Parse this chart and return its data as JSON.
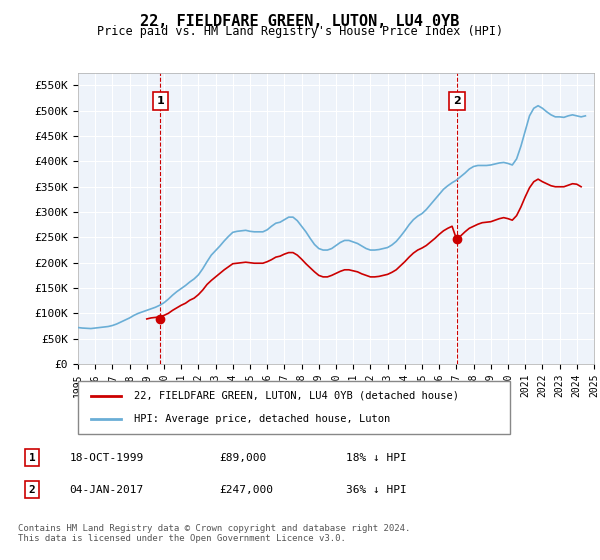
{
  "title": "22, FIELDFARE GREEN, LUTON, LU4 0YB",
  "subtitle": "Price paid vs. HM Land Registry's House Price Index (HPI)",
  "ylabel": "",
  "ylim": [
    0,
    575000
  ],
  "yticks": [
    0,
    50000,
    100000,
    150000,
    200000,
    250000,
    300000,
    350000,
    400000,
    450000,
    500000,
    550000
  ],
  "ytick_labels": [
    "£0",
    "£50K",
    "£100K",
    "£150K",
    "£200K",
    "£250K",
    "£300K",
    "£350K",
    "£400K",
    "£450K",
    "£500K",
    "£550K"
  ],
  "background_color": "#EEF3FA",
  "plot_bg_color": "#EEF3FA",
  "grid_color": "#ffffff",
  "hpi_color": "#6aaed6",
  "price_color": "#cc0000",
  "marker_color": "#cc0000",
  "sale1_date": "18-OCT-1999",
  "sale1_price": 89000,
  "sale1_pct": "18%",
  "sale2_date": "04-JAN-2017",
  "sale2_price": 247000,
  "sale2_pct": "36%",
  "legend_label1": "22, FIELDFARE GREEN, LUTON, LU4 0YB (detached house)",
  "legend_label2": "HPI: Average price, detached house, Luton",
  "footnote": "Contains HM Land Registry data © Crown copyright and database right 2024.\nThis data is licensed under the Open Government Licence v3.0.",
  "hpi_data_x": [
    1995.0,
    1995.25,
    1995.5,
    1995.75,
    1996.0,
    1996.25,
    1996.5,
    1996.75,
    1997.0,
    1997.25,
    1997.5,
    1997.75,
    1998.0,
    1998.25,
    1998.5,
    1998.75,
    1999.0,
    1999.25,
    1999.5,
    1999.75,
    2000.0,
    2000.25,
    2000.5,
    2000.75,
    2001.0,
    2001.25,
    2001.5,
    2001.75,
    2002.0,
    2002.25,
    2002.5,
    2002.75,
    2003.0,
    2003.25,
    2003.5,
    2003.75,
    2004.0,
    2004.25,
    2004.5,
    2004.75,
    2005.0,
    2005.25,
    2005.5,
    2005.75,
    2006.0,
    2006.25,
    2006.5,
    2006.75,
    2007.0,
    2007.25,
    2007.5,
    2007.75,
    2008.0,
    2008.25,
    2008.5,
    2008.75,
    2009.0,
    2009.25,
    2009.5,
    2009.75,
    2010.0,
    2010.25,
    2010.5,
    2010.75,
    2011.0,
    2011.25,
    2011.5,
    2011.75,
    2012.0,
    2012.25,
    2012.5,
    2012.75,
    2013.0,
    2013.25,
    2013.5,
    2013.75,
    2014.0,
    2014.25,
    2014.5,
    2014.75,
    2015.0,
    2015.25,
    2015.5,
    2015.75,
    2016.0,
    2016.25,
    2016.5,
    2016.75,
    2017.0,
    2017.25,
    2017.5,
    2017.75,
    2018.0,
    2018.25,
    2018.5,
    2018.75,
    2019.0,
    2019.25,
    2019.5,
    2019.75,
    2020.0,
    2020.25,
    2020.5,
    2020.75,
    2021.0,
    2021.25,
    2021.5,
    2021.75,
    2022.0,
    2022.25,
    2022.5,
    2022.75,
    2023.0,
    2023.25,
    2023.5,
    2023.75,
    2024.0,
    2024.25,
    2024.5
  ],
  "hpi_data_y": [
    72000,
    71000,
    70500,
    70000,
    71000,
    72000,
    73000,
    74000,
    76000,
    79000,
    83000,
    87000,
    91000,
    96000,
    100000,
    103000,
    106000,
    109000,
    112000,
    116000,
    121000,
    128000,
    136000,
    143000,
    149000,
    155000,
    162000,
    168000,
    176000,
    188000,
    202000,
    215000,
    224000,
    233000,
    243000,
    252000,
    260000,
    262000,
    263000,
    264000,
    262000,
    261000,
    261000,
    261000,
    265000,
    272000,
    278000,
    280000,
    285000,
    290000,
    290000,
    283000,
    272000,
    261000,
    248000,
    236000,
    228000,
    225000,
    225000,
    228000,
    234000,
    240000,
    244000,
    244000,
    241000,
    238000,
    233000,
    228000,
    225000,
    225000,
    226000,
    228000,
    230000,
    235000,
    242000,
    252000,
    263000,
    275000,
    285000,
    292000,
    297000,
    305000,
    315000,
    325000,
    335000,
    345000,
    352000,
    358000,
    363000,
    370000,
    377000,
    385000,
    390000,
    392000,
    392000,
    392000,
    393000,
    395000,
    397000,
    398000,
    396000,
    393000,
    405000,
    430000,
    460000,
    490000,
    505000,
    510000,
    505000,
    498000,
    492000,
    488000,
    488000,
    487000,
    490000,
    492000,
    490000,
    488000,
    490000
  ],
  "price_data_x": [
    1999.0,
    1999.25,
    1999.5,
    1999.75,
    2000.0,
    2000.25,
    2000.5,
    2000.75,
    2001.0,
    2001.25,
    2001.5,
    2001.75,
    2002.0,
    2002.25,
    2002.5,
    2002.75,
    2003.0,
    2003.25,
    2003.5,
    2003.75,
    2004.0,
    2004.25,
    2004.5,
    2004.75,
    2005.0,
    2005.25,
    2005.5,
    2005.75,
    2006.0,
    2006.25,
    2006.5,
    2006.75,
    2007.0,
    2007.25,
    2007.5,
    2007.75,
    2008.0,
    2008.25,
    2008.5,
    2008.75,
    2009.0,
    2009.25,
    2009.5,
    2009.75,
    2010.0,
    2010.25,
    2010.5,
    2010.75,
    2011.0,
    2011.25,
    2011.5,
    2011.75,
    2012.0,
    2012.25,
    2012.5,
    2012.75,
    2013.0,
    2013.25,
    2013.5,
    2013.75,
    2014.0,
    2014.25,
    2014.5,
    2014.75,
    2015.0,
    2015.25,
    2015.5,
    2015.75,
    2016.0,
    2016.25,
    2016.5,
    2016.75,
    2017.0,
    2017.25,
    2017.5,
    2017.75,
    2018.0,
    2018.25,
    2018.5,
    2018.75,
    2019.0,
    2019.25,
    2019.5,
    2019.75,
    2020.0,
    2020.25,
    2020.5,
    2020.75,
    2021.0,
    2021.25,
    2021.5,
    2021.75,
    2022.0,
    2022.25,
    2022.5,
    2022.75,
    2023.0,
    2023.25,
    2023.5,
    2023.75,
    2024.0,
    2024.25
  ],
  "price_data_y": [
    89000,
    91000,
    92000,
    93000,
    96000,
    100000,
    106000,
    111000,
    116000,
    120000,
    126000,
    130000,
    137000,
    146000,
    157000,
    165000,
    172000,
    179000,
    186000,
    192000,
    198000,
    199000,
    200000,
    201000,
    200000,
    199000,
    199000,
    199000,
    202000,
    206000,
    211000,
    213000,
    217000,
    220000,
    220000,
    215000,
    207000,
    198000,
    190000,
    182000,
    175000,
    172000,
    172000,
    175000,
    179000,
    183000,
    186000,
    186000,
    184000,
    182000,
    178000,
    175000,
    172000,
    172000,
    173000,
    175000,
    177000,
    181000,
    186000,
    194000,
    202000,
    211000,
    219000,
    225000,
    229000,
    234000,
    241000,
    248000,
    256000,
    263000,
    268000,
    272000,
    247000,
    253000,
    261000,
    268000,
    272000,
    276000,
    279000,
    280000,
    281000,
    284000,
    287000,
    289000,
    287000,
    284000,
    293000,
    310000,
    330000,
    348000,
    360000,
    365000,
    360000,
    356000,
    352000,
    350000,
    350000,
    350000,
    353000,
    356000,
    355000,
    350000
  ],
  "sale1_x": 1999.79,
  "sale1_y": 89000,
  "sale2_x": 2017.02,
  "sale2_y": 247000,
  "vline1_x": 1999.79,
  "vline2_x": 2017.02,
  "xmin": 1995.0,
  "xmax": 2025.0
}
